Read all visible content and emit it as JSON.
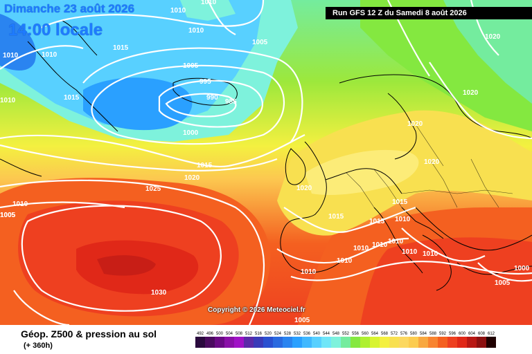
{
  "header": {
    "date_line": "Dimanche 23 août 2026",
    "time_line": "14:00 locale",
    "run_info": "Run GFS 12 Z du Samedi 8 août 2026"
  },
  "copyright": "Copyright © 2026 Meteociel.fr",
  "footer": {
    "title": "Géop. Z500 & pression au sol",
    "subtitle": "(+ 360h)"
  },
  "legend": {
    "values": [
      "492",
      "496",
      "500",
      "504",
      "508",
      "512",
      "516",
      "520",
      "524",
      "528",
      "532",
      "536",
      "540",
      "544",
      "548",
      "552",
      "556",
      "560",
      "564",
      "568",
      "572",
      "576",
      "580",
      "584",
      "588",
      "592",
      "596",
      "600",
      "604",
      "608",
      "612"
    ],
    "colors": [
      "#2a0a3d",
      "#4a0b5e",
      "#6a0a84",
      "#8a10a8",
      "#a012c6",
      "#5b2aa8",
      "#3a3ab8",
      "#2a50d0",
      "#2a6ae0",
      "#2a84f0",
      "#2aa0ff",
      "#40b8ff",
      "#58d0ff",
      "#70e6f8",
      "#7ef2dc",
      "#74ec9e",
      "#84e840",
      "#aef030",
      "#d8f430",
      "#f4f040",
      "#f8e050",
      "#fcd860",
      "#fccc50",
      "#f8a840",
      "#f88430",
      "#f46020",
      "#ee4020",
      "#e02818",
      "#b81814",
      "#8c1010",
      "#200000"
    ]
  },
  "map": {
    "pressure_labels": [
      "1010",
      "1010",
      "1005",
      "1010",
      "1010",
      "1010",
      "1015",
      "1015",
      "1005",
      "1010",
      "1005",
      "995",
      "990",
      "985",
      "1000",
      "1020",
      "1015",
      "1020",
      "1020",
      "1020",
      "1020",
      "1025",
      "1020",
      "1010",
      "1005",
      "1015",
      "1015",
      "1015",
      "1010",
      "1010",
      "1010",
      "1010",
      "1010",
      "1010",
      "1010",
      "1005",
      "1010",
      "1030",
      "1005",
      "1000"
    ]
  }
}
